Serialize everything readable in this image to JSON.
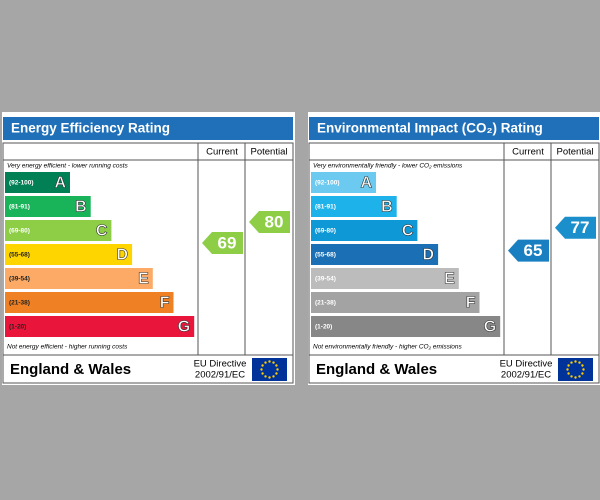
{
  "panels": [
    {
      "title": "Energy Efficiency Rating",
      "title_color": "#1f70b8",
      "columns": [
        "Current",
        "Potential"
      ],
      "top_note": "Very energy efficient - lower running costs",
      "bottom_note": "Not energy efficient - higher running costs",
      "bands": [
        {
          "range": "(92-100)",
          "letter": "A",
          "color": "#008054"
        },
        {
          "range": "(81-91)",
          "letter": "B",
          "color": "#19b459"
        },
        {
          "range": "(69-80)",
          "letter": "C",
          "color": "#8dce46"
        },
        {
          "range": "(55-68)",
          "letter": "D",
          "color": "#ffd500"
        },
        {
          "range": "(39-54)",
          "letter": "E",
          "color": "#fcaa65"
        },
        {
          "range": "(21-38)",
          "letter": "F",
          "color": "#ef8023"
        },
        {
          "range": "(1-20)",
          "letter": "G",
          "color": "#e9153b"
        }
      ],
      "current": {
        "value": 69,
        "color": "#8dce46"
      },
      "potential": {
        "value": 80,
        "color": "#8dce46"
      },
      "footer": {
        "country": "England & Wales",
        "directive": [
          "EU Directive",
          "2002/91/EC"
        ]
      }
    },
    {
      "title": "Environmental Impact (CO₂) Rating",
      "title_color": "#1f70b8",
      "columns": [
        "Current",
        "Potential"
      ],
      "top_note": "Very environmentally friendly - lower CO₂ emissions",
      "bottom_note": "Not environmentally friendly - higher CO₂ emissions",
      "bands": [
        {
          "range": "(92-100)",
          "letter": "A",
          "color": "#6ccaf0"
        },
        {
          "range": "(81-91)",
          "letter": "B",
          "color": "#1eb2ea"
        },
        {
          "range": "(69-80)",
          "letter": "C",
          "color": "#0f98d6"
        },
        {
          "range": "(55-68)",
          "letter": "D",
          "color": "#1a6fb5"
        },
        {
          "range": "(39-54)",
          "letter": "E",
          "color": "#bcbcbc"
        },
        {
          "range": "(21-38)",
          "letter": "F",
          "color": "#a3a3a3"
        },
        {
          "range": "(1-20)",
          "letter": "G",
          "color": "#878787"
        }
      ],
      "current": {
        "value": 65,
        "color": "#1a7fc0"
      },
      "potential": {
        "value": 77,
        "color": "#1a8fcc"
      },
      "footer": {
        "country": "England & Wales",
        "directive": [
          "EU Directive",
          "2002/91/EC"
        ]
      }
    }
  ]
}
